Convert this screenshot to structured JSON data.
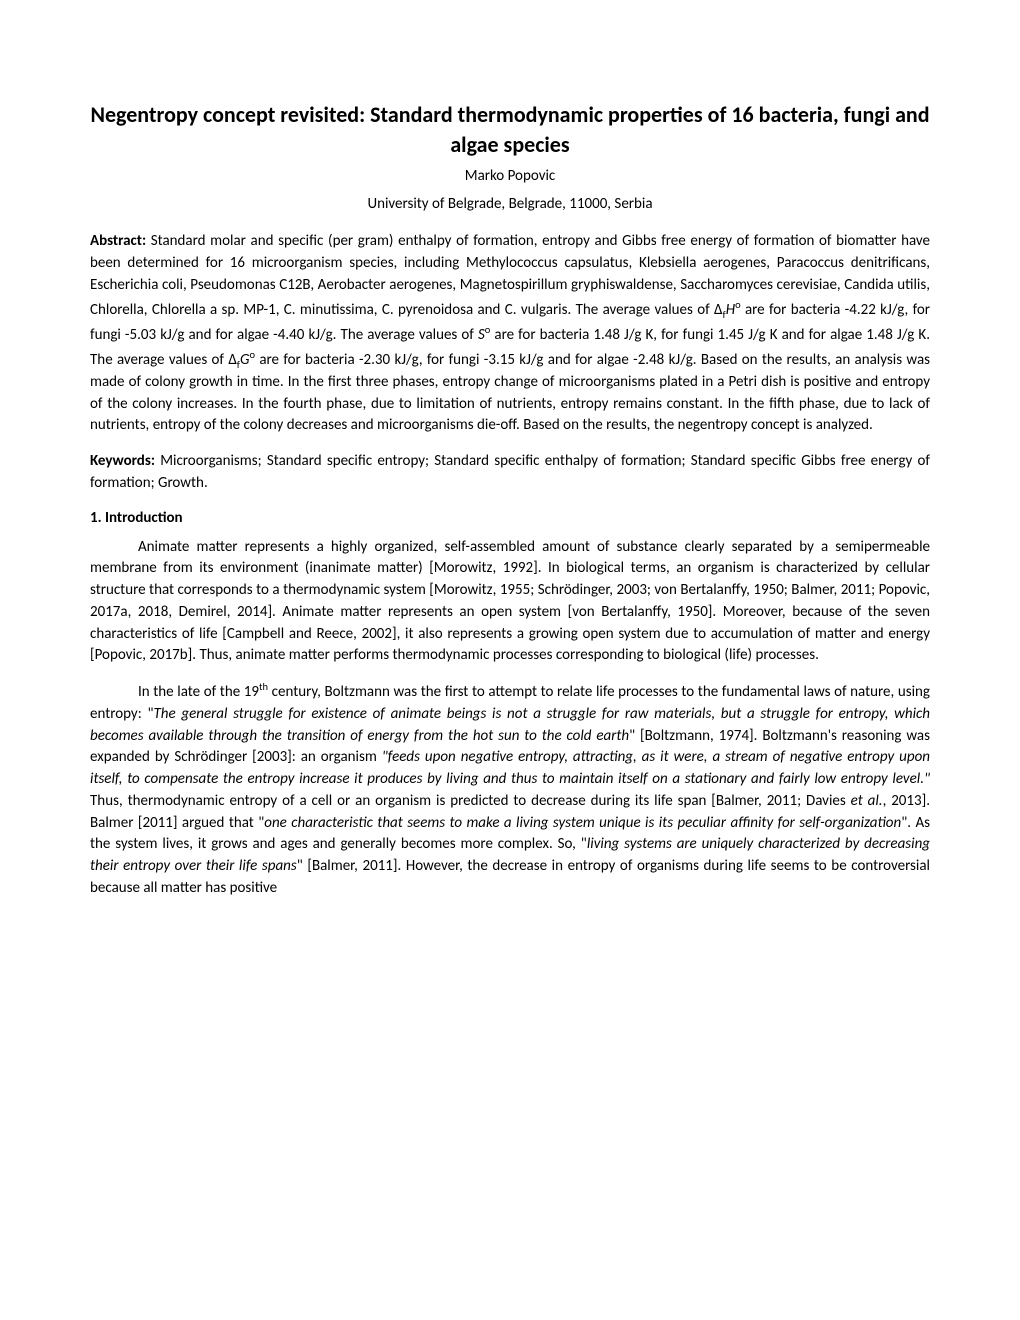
{
  "title": "Negentropy concept revisited: Standard thermodynamic properties of 16 bacteria, fungi and algae species",
  "author": "Marko Popovic",
  "affiliation": "University of Belgrade, Belgrade, 11000, Serbia",
  "abstract_label": "Abstract:",
  "abstract_text_1": " Standard molar and specific (per gram) enthalpy of formation, entropy and Gibbs free energy of formation of biomatter have been determined for 16 microorganism species, including Methylococcus capsulatus, Klebsiella aerogenes, Paracoccus denitrificans, Escherichia coli, Pseudomonas C12B, Aerobacter aerogenes, Magnetospirillum gryphiswaldense, Saccharomyces cerevisiae, Candida utilis, Chlorella, Chlorella a sp. MP-1, C. minutissima, C. pyrenoidosa and C. vulgaris. The average values of Δ",
  "abstract_sub_f1": "f",
  "abstract_italic_H": "H",
  "abstract_sup_o1": "o",
  "abstract_text_2": " are for bacteria -4.22 kJ/g, for fungi -5.03 kJ/g and for algae -4.40 kJ/g. The average values of ",
  "abstract_italic_S": "S",
  "abstract_sup_o2": "o",
  "abstract_text_3": " are for bacteria 1.48 J/g K, for fungi 1.45 J/g K and for algae 1.48 J/g K. The average values of Δ",
  "abstract_sub_f2": "f",
  "abstract_italic_G": "G",
  "abstract_sup_o3": "o",
  "abstract_text_4": " are for bacteria -2.30 kJ/g, for fungi -3.15 kJ/g and for algae -2.48 kJ/g. Based on the results, an analysis was made of colony growth in time. In the first three phases, entropy change of microorganisms plated in a Petri dish is positive and entropy of the colony increases. In the fourth phase, due to limitation of nutrients, entropy remains constant. In the fifth phase, due to lack of nutrients, entropy of the colony decreases and microorganisms die-off. Based on the results, the negentropy concept is analyzed.",
  "keywords_label": "Keywords:",
  "keywords_text": " Microorganisms; Standard specific entropy; Standard specific enthalpy of formation; Standard specific Gibbs free energy of formation; Growth.",
  "section1_heading": "1. Introduction",
  "para1": "Animate matter represents a highly organized, self-assembled amount of substance clearly separated by a semipermeable membrane from its environment (inanimate matter) [Morowitz, 1992]. In biological terms, an organism is characterized by cellular structure that corresponds to a thermodynamic system [Morowitz, 1955; Schrödinger, 2003; von Bertalanffy, 1950; Balmer, 2011; Popovic, 2017a, 2018, Demirel, 2014]. Animate matter represents an open system [von Bertalanffy, 1950]. Moreover, because of the seven characteristics of life [Campbell and Reece, 2002], it also represents a growing open system due to accumulation of matter and energy [Popovic, 2017b]. Thus, animate matter performs thermodynamic processes corresponding to biological (life) processes.",
  "para2_start": "In the late of the 19",
  "para2_sup_th": "th",
  "para2_mid1": " century, Boltzmann was the first to attempt to relate life processes to the fundamental laws of nature, using entropy: \"",
  "para2_quote1": "The general struggle for existence of animate beings is not a struggle for raw materials, but a struggle for entropy, which becomes available through the transition of energy from the hot sun to the cold earth",
  "para2_mid2": "\" [Boltzmann, 1974]. Boltzmann's reasoning was expanded by Schrödinger [2003]: an organism ",
  "para2_quote2": "\"feeds upon negative entropy, attracting, as it were, a stream of negative entropy upon itself, to compensate the entropy increase it produces by living and thus to maintain itself on a stationary and fairly low entropy level.\"",
  "para2_mid3": " Thus, thermodynamic entropy of a cell or an organism is predicted to decrease during its life span [Balmer, 2011; Davies ",
  "para2_etal": "et al.",
  "para2_mid4": ", 2013]. Balmer [2011] argued that \"",
  "para2_quote3": "one characteristic that seems to make a living system unique is its peculiar affinity for self-organization",
  "para2_mid5": "\". As the system lives, it grows and ages and generally becomes more complex. So, \"",
  "para2_quote4": "living systems are uniquely characterized by decreasing their entropy over their life spans",
  "para2_mid6": "\" [Balmer, 2011].  However, the decrease in entropy of organisms during life seems to be controversial because all matter has positive"
}
